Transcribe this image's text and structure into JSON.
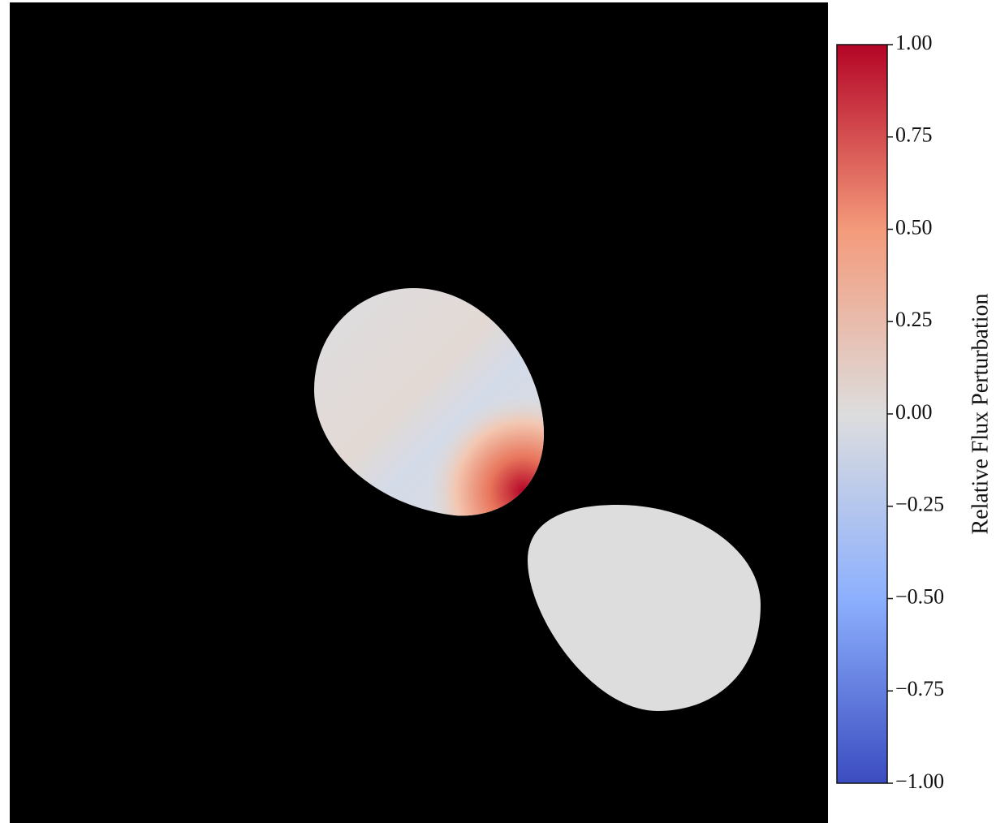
{
  "chart_data": {
    "type": "image",
    "colorbar": {
      "label": "Relative Flux Perturbation",
      "lim": [
        -1,
        1
      ],
      "ticks": [
        {
          "value": -1,
          "label": "−1.00"
        },
        {
          "value": -0.75,
          "label": "−0.75"
        },
        {
          "value": -0.5,
          "label": "−0.50"
        },
        {
          "value": -0.25,
          "label": "−0.25"
        },
        {
          "value": 0,
          "label": "0.00"
        },
        {
          "value": 0.25,
          "label": "0.25"
        },
        {
          "value": 0.5,
          "label": "0.50"
        },
        {
          "value": 0.75,
          "label": "0.75"
        },
        {
          "value": 1,
          "label": "1.00"
        }
      ]
    }
  }
}
